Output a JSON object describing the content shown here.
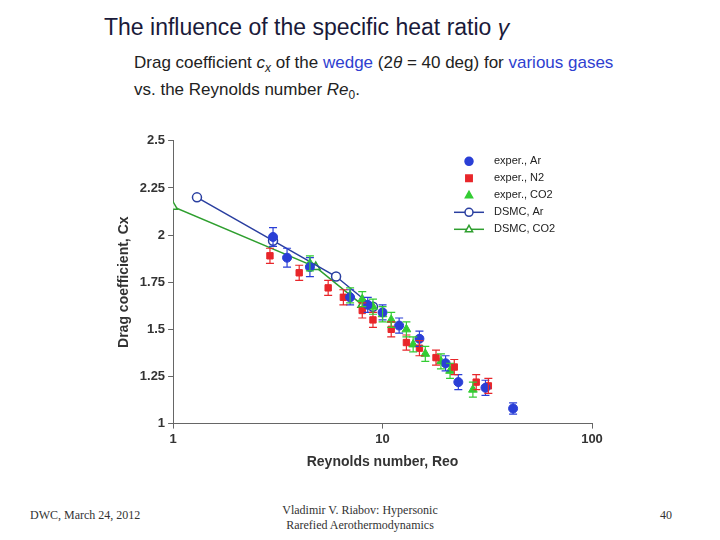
{
  "slide": {
    "title": [
      {
        "text": "The influence of the specific heat ratio "
      },
      {
        "text": "γ",
        "italic": true
      }
    ],
    "subtitle": [
      {
        "text": "Drag coefficient "
      },
      {
        "text": "c",
        "italic": true
      },
      {
        "text": "x",
        "italic": true,
        "sub": true
      },
      {
        "text": " of the "
      },
      {
        "text": "wedge",
        "color": "#2f3fd0"
      },
      {
        "text": " (2"
      },
      {
        "text": "θ",
        "italic": true
      },
      {
        "text": " = 40 deg) for "
      },
      {
        "text": "various gases",
        "color": "#2f3fd0"
      },
      {
        "text": " vs. the Reynolds number "
      },
      {
        "text": "Re",
        "italic": true
      },
      {
        "text": "0",
        "sub": true
      },
      {
        "text": "."
      }
    ],
    "footer": {
      "left": "DWC, March 24, 2012",
      "center": [
        "Vladimir V. Riabov: Hypersonic",
        "Rarefied Aerothermodynamics"
      ],
      "right": "40"
    }
  },
  "chart_data": {
    "type": "scatter",
    "x_label": "Reynolds number, Reo",
    "y_label": "Drag coefficient, Cx",
    "log": "x",
    "xlim": [
      1,
      100
    ],
    "xticks": [
      1,
      10,
      100
    ],
    "ylim": [
      1,
      2.5
    ],
    "yticks": [
      1,
      1.25,
      1.5,
      1.75,
      2,
      2.25,
      2.5
    ],
    "grid": false,
    "legend": "top-right",
    "series": [
      {
        "name": "exper., Ar",
        "color": "#2a3fd6",
        "marker": "circle",
        "line_style": "none",
        "x": [
          3,
          3.5,
          4.5,
          7,
          8.5,
          10,
          12,
          15,
          20,
          23,
          31,
          42
        ],
        "values": [
          1.99,
          1.88,
          1.83,
          1.67,
          1.63,
          1.59,
          1.52,
          1.45,
          1.32,
          1.22,
          1.19,
          1.08
        ],
        "errors": [
          0.05,
          0.05,
          0.05,
          0.04,
          0.04,
          0.04,
          0.04,
          0.04,
          0.04,
          0.04,
          0.04,
          0.03
        ]
      },
      {
        "name": "exper., N2",
        "color": "#e8262a",
        "marker": "square",
        "line_style": "none",
        "x": [
          2.9,
          4,
          5.5,
          6.5,
          8,
          9,
          11,
          13,
          15,
          18,
          22,
          28,
          32
        ],
        "values": [
          1.89,
          1.8,
          1.72,
          1.67,
          1.6,
          1.55,
          1.5,
          1.43,
          1.4,
          1.35,
          1.3,
          1.22,
          1.2
        ],
        "errors": [
          0.04,
          0.04,
          0.04,
          0.04,
          0.04,
          0.04,
          0.04,
          0.04,
          0.04,
          0.04,
          0.04,
          0.04,
          0.04
        ]
      },
      {
        "name": "exper., CO2",
        "color": "#33cc33",
        "marker": "triangle",
        "line_style": "none",
        "x": [
          4.5,
          7,
          8,
          9,
          10,
          11,
          13,
          14,
          16,
          19,
          21,
          27
        ],
        "values": [
          1.85,
          1.68,
          1.66,
          1.62,
          1.58,
          1.55,
          1.5,
          1.42,
          1.37,
          1.33,
          1.28,
          1.18
        ],
        "errors": [
          0.04,
          0.04,
          0.04,
          0.04,
          0.04,
          0.04,
          0.04,
          0.04,
          0.04,
          0.04,
          0.04,
          0.04
        ]
      },
      {
        "name": "DSMC, Ar",
        "color": "#2a3fa0",
        "marker": "open-circle",
        "line_style": "solid",
        "x": [
          1.3,
          3,
          6,
          9
        ],
        "values": [
          2.2,
          1.97,
          1.78,
          1.62
        ]
      },
      {
        "name": "DSMC, CO2",
        "color": "#2f9f2f",
        "marker": "open-triangle",
        "line_style": "solid",
        "x": [
          1,
          4.8,
          8
        ],
        "values": [
          2.15,
          1.83,
          1.63
        ]
      }
    ]
  }
}
